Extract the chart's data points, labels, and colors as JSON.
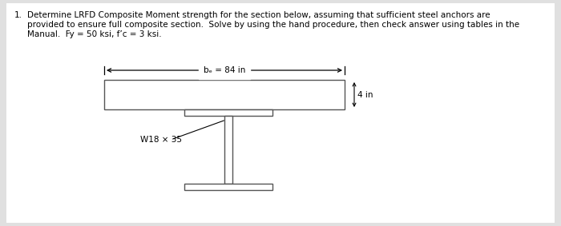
{
  "background_color": "#e0e0e0",
  "panel_color": "#f0f0f0",
  "text_color": "#000000",
  "title_line1": "Determine LRFD Composite Moment strength for the section below, assuming that sufficient steel anchors are",
  "title_line2": "provided to ensure full composite section.  Solve by using the hand procedure, then check answer using tables in the",
  "title_line3": "Manual.  Fy = 50 ksi, f’c = 3 ksi.",
  "item_number": "1.",
  "slab_label": "bₑ = 84 in",
  "slab_thickness_label": "4 in",
  "beam_label": "W18 × 35",
  "font_size": 7.5
}
